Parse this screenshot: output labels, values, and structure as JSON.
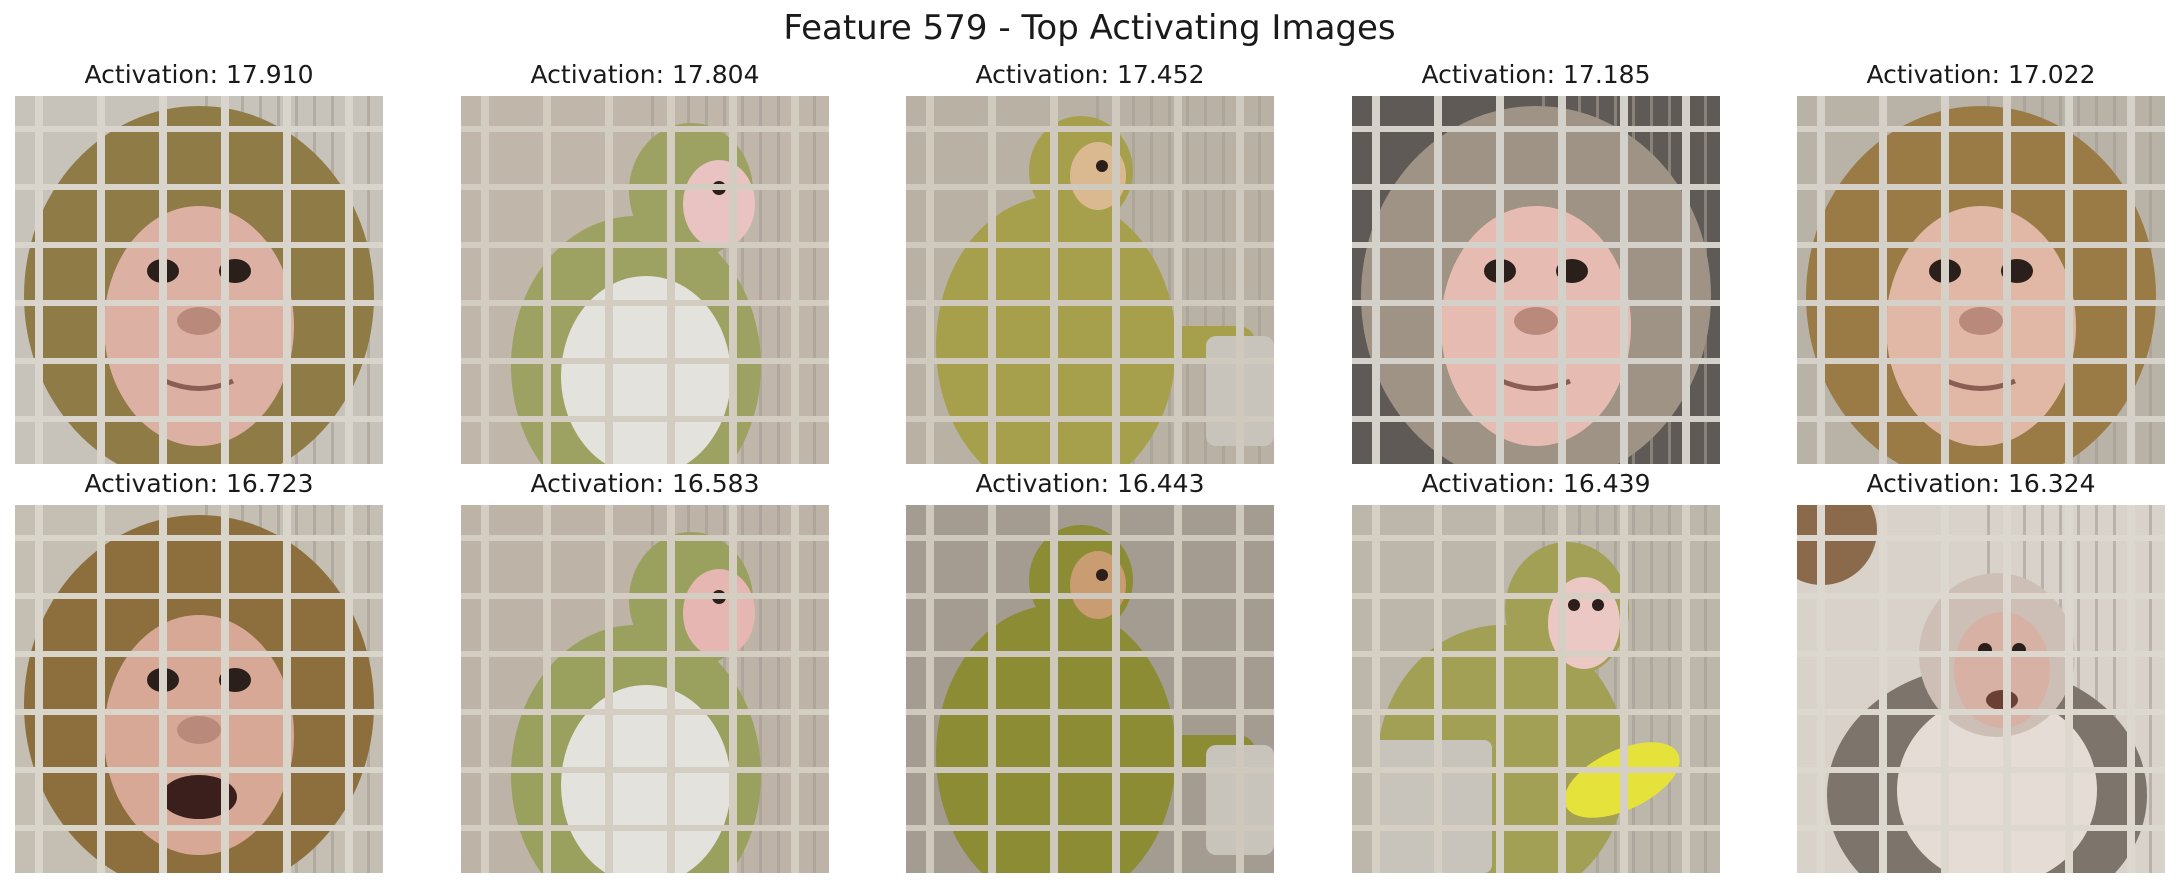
{
  "figure": {
    "title": "Feature 579 - Top Activating Images"
  },
  "tiles": [
    {
      "label": "Activation: 17.910",
      "fur": "#8f7b46",
      "face": "#dcb0a2",
      "bg": "#c7c2ba",
      "bars": "#d9d5cc",
      "pose": "face-close"
    },
    {
      "label": "Activation: 17.804",
      "fur": "#9da161",
      "face": "#e9c3c2",
      "bg": "#c0b7aa",
      "bars": "#d2ccc1",
      "pose": "side-seated"
    },
    {
      "label": "Activation: 17.452",
      "fur": "#a6a04c",
      "face": "#dbb990",
      "bg": "#b8b1a4",
      "bars": "#d0c9bd",
      "pose": "reaching"
    },
    {
      "label": "Activation: 17.185",
      "fur": "#9e9384",
      "face": "#e6bcb2",
      "bg": "#5f5a55",
      "bars": "#d4d0ca",
      "pose": "face-close"
    },
    {
      "label": "Activation: 17.022",
      "fur": "#9a7b45",
      "face": "#e1b7a6",
      "bg": "#b9b2a7",
      "bars": "#d6d1c8",
      "pose": "face-close"
    },
    {
      "label": "Activation: 16.723",
      "fur": "#8c6f3d",
      "face": "#d7a895",
      "bg": "#c4beb3",
      "bars": "#dad5cb",
      "pose": "face-open"
    },
    {
      "label": "Activation: 16.583",
      "fur": "#9aa05e",
      "face": "#e6b6b3",
      "bg": "#bdb4a7",
      "bars": "#d3cdc2",
      "pose": "side-seated"
    },
    {
      "label": "Activation: 16.443",
      "fur": "#8c8c35",
      "face": "#c99c72",
      "bg": "#a49c90",
      "bars": "#cfc8bc",
      "pose": "reaching"
    },
    {
      "label": "Activation: 16.439",
      "fur": "#a2a055",
      "face": "#ebc8c4",
      "bg": "#bdb6aa",
      "bars": "#d5cfc4",
      "pose": "eating"
    },
    {
      "label": "Activation: 16.324",
      "fur": "#7d756b",
      "face": "#d7b1a4",
      "bg": "#d8d2ca",
      "bars": "#dcd7cf",
      "pose": "seated-front"
    }
  ]
}
